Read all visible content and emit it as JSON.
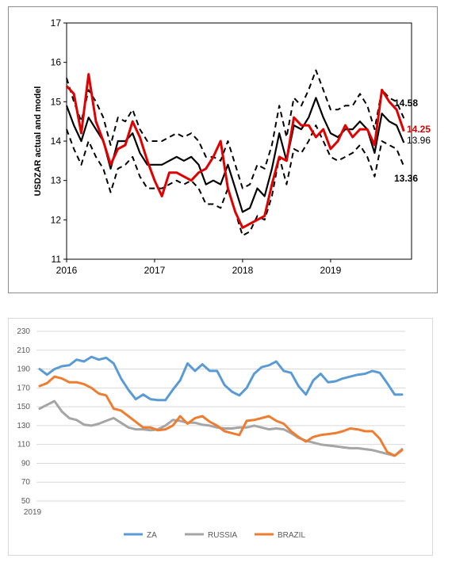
{
  "chart_data": [
    {
      "type": "line",
      "ylabel": "USDZAR actual and model",
      "ylim": [
        11,
        17
      ],
      "y_ticks": [
        "11",
        "12",
        "13",
        "14",
        "15",
        "16",
        "17"
      ],
      "x_ticks": [
        "2016",
        "2017",
        "2018",
        "2019"
      ],
      "x_tick_values": [
        2016,
        2017,
        2018,
        2019
      ],
      "xlim": [
        2016,
        2019.92
      ],
      "x": [
        2016.0,
        2016.083,
        2016.167,
        2016.25,
        2016.333,
        2016.417,
        2016.5,
        2016.583,
        2016.667,
        2016.75,
        2016.833,
        2016.917,
        2017.0,
        2017.083,
        2017.167,
        2017.25,
        2017.333,
        2017.417,
        2017.5,
        2017.583,
        2017.667,
        2017.75,
        2017.833,
        2017.917,
        2018.0,
        2018.083,
        2018.167,
        2018.25,
        2018.333,
        2018.417,
        2018.5,
        2018.583,
        2018.667,
        2018.75,
        2018.833,
        2018.917,
        2019.0,
        2019.083,
        2019.167,
        2019.25,
        2019.333,
        2019.417,
        2019.5,
        2019.583,
        2019.667,
        2019.75,
        2019.833
      ],
      "series": [
        {
          "color": "#e00000",
          "dash": false,
          "values": [
            15.4,
            15.2,
            14.2,
            15.7,
            14.5,
            14.0,
            13.4,
            13.8,
            13.9,
            14.5,
            14.1,
            13.5,
            13.0,
            12.6,
            13.2,
            13.2,
            13.1,
            13.0,
            13.2,
            13.3,
            13.6,
            14.0,
            12.8,
            12.2,
            11.8,
            11.9,
            12.0,
            12.1,
            12.9,
            13.6,
            13.5,
            14.6,
            14.4,
            14.4,
            14.1,
            14.3,
            13.8,
            14.0,
            14.4,
            14.1,
            14.3,
            14.3,
            13.9,
            15.3,
            15.0,
            14.8,
            14.25
          ]
        },
        {
          "color": "#000000",
          "dash": false,
          "values": [
            14.9,
            14.4,
            14.0,
            14.6,
            14.3,
            14.0,
            13.3,
            14.0,
            14.0,
            14.2,
            13.7,
            13.4,
            13.4,
            13.4,
            13.5,
            13.6,
            13.5,
            13.6,
            13.4,
            12.9,
            13.0,
            12.9,
            13.4,
            12.8,
            12.2,
            12.3,
            12.8,
            12.6,
            13.3,
            14.2,
            13.5,
            14.4,
            14.3,
            14.6,
            15.1,
            14.6,
            14.2,
            14.1,
            14.3,
            14.3,
            14.5,
            14.3,
            13.7,
            14.7,
            14.5,
            14.4,
            13.96
          ]
        },
        {
          "color": "#000000",
          "dash": true,
          "values": [
            15.6,
            15.0,
            14.5,
            15.3,
            15.0,
            14.6,
            13.9,
            14.6,
            14.5,
            14.8,
            14.3,
            14.0,
            14.0,
            14.0,
            14.1,
            14.2,
            14.1,
            14.2,
            14.0,
            13.6,
            13.6,
            13.5,
            14.0,
            13.4,
            12.8,
            12.9,
            13.4,
            13.3,
            13.9,
            14.9,
            14.1,
            15.1,
            14.9,
            15.3,
            15.8,
            15.3,
            14.8,
            14.8,
            14.9,
            14.9,
            15.2,
            14.9,
            14.3,
            15.3,
            15.1,
            15.0,
            14.58
          ]
        },
        {
          "color": "#000000",
          "dash": true,
          "values": [
            14.3,
            13.8,
            13.4,
            14.0,
            13.6,
            13.3,
            12.7,
            13.3,
            13.4,
            13.6,
            13.1,
            12.8,
            12.8,
            12.8,
            12.9,
            13.0,
            12.9,
            13.0,
            12.8,
            12.4,
            12.4,
            12.3,
            12.8,
            12.2,
            11.6,
            11.7,
            12.1,
            12.0,
            12.6,
            13.6,
            12.9,
            13.8,
            13.7,
            14.0,
            14.4,
            14.0,
            13.6,
            13.5,
            13.6,
            13.7,
            13.9,
            13.6,
            13.1,
            14.0,
            13.9,
            13.8,
            13.36
          ]
        }
      ],
      "end_labels": [
        {
          "text": "14.58",
          "value": 14.58,
          "color": "#000000",
          "bold": true
        },
        {
          "text": "14.25",
          "value": 14.25,
          "color": "#e00000",
          "bold": true
        },
        {
          "text": "13.96",
          "value": 13.96,
          "color": "#000000",
          "bold": false
        },
        {
          "text": "13.36",
          "value": 13.36,
          "color": "#000000",
          "bold": true
        }
      ]
    },
    {
      "type": "line",
      "ylim": [
        50,
        230
      ],
      "y_ticks": [
        "50",
        "70",
        "90",
        "110",
        "130",
        "150",
        "170",
        "190",
        "210",
        "230"
      ],
      "x_ticks": [
        "2019"
      ],
      "legend_position": "bottom",
      "series": [
        {
          "name": "ZA",
          "color": "#5b9bd5",
          "values": [
            190,
            184,
            190,
            193,
            194,
            200,
            198,
            203,
            200,
            202,
            196,
            180,
            168,
            158,
            163,
            158,
            157,
            157,
            168,
            178,
            196,
            188,
            195,
            188,
            188,
            173,
            166,
            162,
            170,
            185,
            192,
            194,
            198,
            188,
            186,
            172,
            163,
            178,
            185,
            176,
            177,
            180,
            182,
            184,
            185,
            188,
            186,
            175,
            163,
            163
          ]
        },
        {
          "name": "RUSSIA",
          "color": "#a5a5a5",
          "values": [
            148,
            152,
            156,
            145,
            138,
            136,
            131,
            130,
            132,
            135,
            138,
            133,
            128,
            126,
            126,
            125,
            126,
            130,
            136,
            135,
            133,
            133,
            131,
            130,
            128,
            127,
            127,
            128,
            128,
            130,
            128,
            126,
            127,
            126,
            122,
            117,
            114,
            112,
            110,
            109,
            108,
            107,
            106,
            106,
            105,
            104,
            102,
            100,
            98,
            105
          ]
        },
        {
          "name": "BRAZIL",
          "color": "#ed7d31",
          "values": [
            172,
            175,
            182,
            180,
            176,
            176,
            174,
            170,
            164,
            162,
            148,
            146,
            140,
            134,
            128,
            128,
            125,
            126,
            130,
            140,
            132,
            138,
            140,
            134,
            130,
            124,
            122,
            120,
            135,
            136,
            138,
            140,
            135,
            132,
            124,
            118,
            113,
            118,
            120,
            121,
            122,
            124,
            127,
            126,
            124,
            124,
            116,
            102,
            98,
            104
          ]
        }
      ]
    }
  ]
}
